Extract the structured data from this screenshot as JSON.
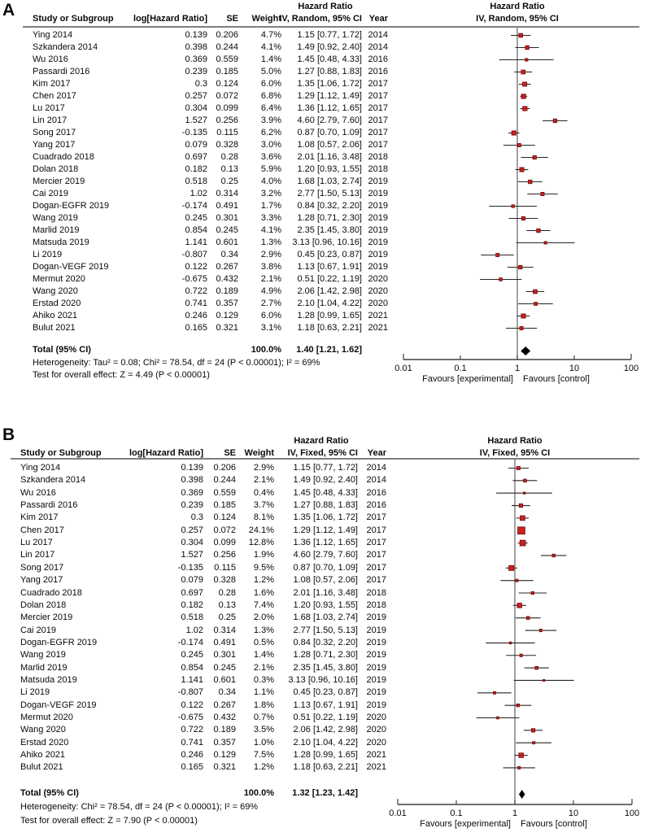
{
  "chart_data": [
    {
      "type": "forest",
      "panel_label": "A",
      "title": "Hazard Ratio",
      "model": "IV, Random, 95% CI",
      "columns": {
        "study": "Study or Subgroup",
        "loghr": "log[Hazard Ratio]",
        "se": "SE",
        "weight": "Weight",
        "year": "Year"
      },
      "x_scale": "log10",
      "x_ticks": [
        0.01,
        0.1,
        1,
        10,
        100
      ],
      "x_tick_labels": [
        "0.01",
        "0.1",
        "1",
        "10",
        "100"
      ],
      "favours_left": "Favours [experimental]",
      "favours_right": "Favours [control]",
      "studies": [
        {
          "name": "Ying 2014",
          "loghr": "0.139",
          "se": "0.206",
          "weight": "4.7%",
          "w": 4.7,
          "ci": "1.15 [0.77, 1.72]",
          "hr": 1.15,
          "lo": 0.77,
          "hi": 1.72,
          "year": "2014"
        },
        {
          "name": "Szkandera 2014",
          "loghr": "0.398",
          "se": "0.244",
          "weight": "4.1%",
          "w": 4.1,
          "ci": "1.49 [0.92, 2.40]",
          "hr": 1.49,
          "lo": 0.92,
          "hi": 2.4,
          "year": "2014"
        },
        {
          "name": "Wu 2016",
          "loghr": "0.369",
          "se": "0.559",
          "weight": "1.4%",
          "w": 1.4,
          "ci": "1.45 [0.48, 4.33]",
          "hr": 1.45,
          "lo": 0.48,
          "hi": 4.33,
          "year": "2016"
        },
        {
          "name": "Passardi 2016",
          "loghr": "0.239",
          "se": "0.185",
          "weight": "5.0%",
          "w": 5.0,
          "ci": "1.27 [0.88, 1.83]",
          "hr": 1.27,
          "lo": 0.88,
          "hi": 1.83,
          "year": "2016"
        },
        {
          "name": "Kim 2017",
          "loghr": "0.3",
          "se": "0.124",
          "weight": "6.0%",
          "w": 6.0,
          "ci": "1.35 [1.06, 1.72]",
          "hr": 1.35,
          "lo": 1.06,
          "hi": 1.72,
          "year": "2017"
        },
        {
          "name": "Chen 2017",
          "loghr": "0.257",
          "se": "0.072",
          "weight": "6.8%",
          "w": 6.8,
          "ci": "1.29 [1.12, 1.49]",
          "hr": 1.29,
          "lo": 1.12,
          "hi": 1.49,
          "year": "2017"
        },
        {
          "name": "Lu 2017",
          "loghr": "0.304",
          "se": "0.099",
          "weight": "6.4%",
          "w": 6.4,
          "ci": "1.36 [1.12, 1.65]",
          "hr": 1.36,
          "lo": 1.12,
          "hi": 1.65,
          "year": "2017"
        },
        {
          "name": "Lin 2017",
          "loghr": "1.527",
          "se": "0.256",
          "weight": "3.9%",
          "w": 3.9,
          "ci": "4.60 [2.79, 7.60]",
          "hr": 4.6,
          "lo": 2.79,
          "hi": 7.6,
          "year": "2017"
        },
        {
          "name": "Song 2017",
          "loghr": "-0.135",
          "se": "0.115",
          "weight": "6.2%",
          "w": 6.2,
          "ci": "0.87 [0.70, 1.09]",
          "hr": 0.87,
          "lo": 0.7,
          "hi": 1.09,
          "year": "2017"
        },
        {
          "name": "Yang 2017",
          "loghr": "0.079",
          "se": "0.328",
          "weight": "3.0%",
          "w": 3.0,
          "ci": "1.08 [0.57, 2.06]",
          "hr": 1.08,
          "lo": 0.57,
          "hi": 2.06,
          "year": "2017"
        },
        {
          "name": "Cuadrado 2018",
          "loghr": "0.697",
          "se": "0.28",
          "weight": "3.6%",
          "w": 3.6,
          "ci": "2.01 [1.16, 3.48]",
          "hr": 2.01,
          "lo": 1.16,
          "hi": 3.48,
          "year": "2018"
        },
        {
          "name": "Dolan 2018",
          "loghr": "0.182",
          "se": "0.13",
          "weight": "5.9%",
          "w": 5.9,
          "ci": "1.20 [0.93, 1.55]",
          "hr": 1.2,
          "lo": 0.93,
          "hi": 1.55,
          "year": "2018"
        },
        {
          "name": "Mercier 2019",
          "loghr": "0.518",
          "se": "0.25",
          "weight": "4.0%",
          "w": 4.0,
          "ci": "1.68 [1.03, 2.74]",
          "hr": 1.68,
          "lo": 1.03,
          "hi": 2.74,
          "year": "2019"
        },
        {
          "name": "Cai 2019",
          "loghr": "1.02",
          "se": "0.314",
          "weight": "3.2%",
          "w": 3.2,
          "ci": "2.77 [1.50, 5.13]",
          "hr": 2.77,
          "lo": 1.5,
          "hi": 5.13,
          "year": "2019"
        },
        {
          "name": "Dogan-EGFR 2019",
          "loghr": "-0.174",
          "se": "0.491",
          "weight": "1.7%",
          "w": 1.7,
          "ci": "0.84 [0.32, 2.20]",
          "hr": 0.84,
          "lo": 0.32,
          "hi": 2.2,
          "year": "2019"
        },
        {
          "name": "Wang 2019",
          "loghr": "0.245",
          "se": "0.301",
          "weight": "3.3%",
          "w": 3.3,
          "ci": "1.28 [0.71, 2.30]",
          "hr": 1.28,
          "lo": 0.71,
          "hi": 2.3,
          "year": "2019"
        },
        {
          "name": "Marlid 2019",
          "loghr": "0.854",
          "se": "0.245",
          "weight": "4.1%",
          "w": 4.1,
          "ci": "2.35 [1.45, 3.80]",
          "hr": 2.35,
          "lo": 1.45,
          "hi": 3.8,
          "year": "2019"
        },
        {
          "name": "Matsuda 2019",
          "loghr": "1.141",
          "se": "0.601",
          "weight": "1.3%",
          "w": 1.3,
          "ci": "3.13 [0.96, 10.16]",
          "hr": 3.13,
          "lo": 0.96,
          "hi": 10.16,
          "year": "2019"
        },
        {
          "name": "Li 2019",
          "loghr": "-0.807",
          "se": "0.34",
          "weight": "2.9%",
          "w": 2.9,
          "ci": "0.45 [0.23, 0.87]",
          "hr": 0.45,
          "lo": 0.23,
          "hi": 0.87,
          "year": "2019"
        },
        {
          "name": "Dogan-VEGF 2019",
          "loghr": "0.122",
          "se": "0.267",
          "weight": "3.8%",
          "w": 3.8,
          "ci": "1.13 [0.67, 1.91]",
          "hr": 1.13,
          "lo": 0.67,
          "hi": 1.91,
          "year": "2019"
        },
        {
          "name": "Mermut 2020",
          "loghr": "-0.675",
          "se": "0.432",
          "weight": "2.1%",
          "w": 2.1,
          "ci": "0.51 [0.22, 1.19]",
          "hr": 0.51,
          "lo": 0.22,
          "hi": 1.19,
          "year": "2020"
        },
        {
          "name": "Wang 2020",
          "loghr": "0.722",
          "se": "0.189",
          "weight": "4.9%",
          "w": 4.9,
          "ci": "2.06 [1.42, 2.98]",
          "hr": 2.06,
          "lo": 1.42,
          "hi": 2.98,
          "year": "2020"
        },
        {
          "name": "Erstad 2020",
          "loghr": "0.741",
          "se": "0.357",
          "weight": "2.7%",
          "w": 2.7,
          "ci": "2.10 [1.04, 4.22]",
          "hr": 2.1,
          "lo": 1.04,
          "hi": 4.22,
          "year": "2020"
        },
        {
          "name": "Ahiko 2021",
          "loghr": "0.246",
          "se": "0.129",
          "weight": "6.0%",
          "w": 6.0,
          "ci": "1.28 [0.99, 1.65]",
          "hr": 1.28,
          "lo": 0.99,
          "hi": 1.65,
          "year": "2021"
        },
        {
          "name": "Bulut 2021",
          "loghr": "0.165",
          "se": "0.321",
          "weight": "3.1%",
          "w": 3.1,
          "ci": "1.18 [0.63, 2.21]",
          "hr": 1.18,
          "lo": 0.63,
          "hi": 2.21,
          "year": "2021"
        }
      ],
      "total": {
        "label": "Total (95% CI)",
        "weight": "100.0%",
        "ci": "1.40 [1.21, 1.62]",
        "hr": 1.4,
        "lo": 1.21,
        "hi": 1.62
      },
      "heterogeneity": "Heterogeneity: Tau² = 0.08; Chi² = 78.54, df = 24 (P < 0.00001); I² = 69%",
      "overall_test": "Test for overall effect: Z = 4.49 (P < 0.00001)"
    },
    {
      "type": "forest",
      "panel_label": "B",
      "title": "Hazard Ratio",
      "model": "IV, Fixed, 95% CI",
      "columns": {
        "study": "Study or Subgroup",
        "loghr": "log[Hazard Ratio]",
        "se": "SE",
        "weight": "Weight",
        "year": "Year"
      },
      "x_scale": "log10",
      "x_ticks": [
        0.01,
        0.1,
        1,
        10,
        100
      ],
      "x_tick_labels": [
        "0.01",
        "0.1",
        "1",
        "10",
        "100"
      ],
      "favours_left": "Favours [experimental]",
      "favours_right": "Favours [control]",
      "studies": [
        {
          "name": "Ying 2014",
          "loghr": "0.139",
          "se": "0.206",
          "weight": "2.9%",
          "w": 2.9,
          "ci": "1.15 [0.77, 1.72]",
          "hr": 1.15,
          "lo": 0.77,
          "hi": 1.72,
          "year": "2014"
        },
        {
          "name": "Szkandera 2014",
          "loghr": "0.398",
          "se": "0.244",
          "weight": "2.1%",
          "w": 2.1,
          "ci": "1.49 [0.92, 2.40]",
          "hr": 1.49,
          "lo": 0.92,
          "hi": 2.4,
          "year": "2014"
        },
        {
          "name": "Wu 2016",
          "loghr": "0.369",
          "se": "0.559",
          "weight": "0.4%",
          "w": 0.4,
          "ci": "1.45 [0.48, 4.33]",
          "hr": 1.45,
          "lo": 0.48,
          "hi": 4.33,
          "year": "2016"
        },
        {
          "name": "Passardi 2016",
          "loghr": "0.239",
          "se": "0.185",
          "weight": "3.7%",
          "w": 3.7,
          "ci": "1.27 [0.88, 1.83]",
          "hr": 1.27,
          "lo": 0.88,
          "hi": 1.83,
          "year": "2016"
        },
        {
          "name": "Kim 2017",
          "loghr": "0.3",
          "se": "0.124",
          "weight": "8.1%",
          "w": 8.1,
          "ci": "1.35 [1.06, 1.72]",
          "hr": 1.35,
          "lo": 1.06,
          "hi": 1.72,
          "year": "2017"
        },
        {
          "name": "Chen 2017",
          "loghr": "0.257",
          "se": "0.072",
          "weight": "24.1%",
          "w": 24.1,
          "ci": "1.29 [1.12, 1.49]",
          "hr": 1.29,
          "lo": 1.12,
          "hi": 1.49,
          "year": "2017"
        },
        {
          "name": "Lu 2017",
          "loghr": "0.304",
          "se": "0.099",
          "weight": "12.8%",
          "w": 12.8,
          "ci": "1.36 [1.12, 1.65]",
          "hr": 1.36,
          "lo": 1.12,
          "hi": 1.65,
          "year": "2017"
        },
        {
          "name": "Lin 2017",
          "loghr": "1.527",
          "se": "0.256",
          "weight": "1.9%",
          "w": 1.9,
          "ci": "4.60 [2.79, 7.60]",
          "hr": 4.6,
          "lo": 2.79,
          "hi": 7.6,
          "year": "2017"
        },
        {
          "name": "Song 2017",
          "loghr": "-0.135",
          "se": "0.115",
          "weight": "9.5%",
          "w": 9.5,
          "ci": "0.87 [0.70, 1.09]",
          "hr": 0.87,
          "lo": 0.7,
          "hi": 1.09,
          "year": "2017"
        },
        {
          "name": "Yang 2017",
          "loghr": "0.079",
          "se": "0.328",
          "weight": "1.2%",
          "w": 1.2,
          "ci": "1.08 [0.57, 2.06]",
          "hr": 1.08,
          "lo": 0.57,
          "hi": 2.06,
          "year": "2017"
        },
        {
          "name": "Cuadrado 2018",
          "loghr": "0.697",
          "se": "0.28",
          "weight": "1.6%",
          "w": 1.6,
          "ci": "2.01 [1.16, 3.48]",
          "hr": 2.01,
          "lo": 1.16,
          "hi": 3.48,
          "year": "2018"
        },
        {
          "name": "Dolan 2018",
          "loghr": "0.182",
          "se": "0.13",
          "weight": "7.4%",
          "w": 7.4,
          "ci": "1.20 [0.93, 1.55]",
          "hr": 1.2,
          "lo": 0.93,
          "hi": 1.55,
          "year": "2018"
        },
        {
          "name": "Mercier 2019",
          "loghr": "0.518",
          "se": "0.25",
          "weight": "2.0%",
          "w": 2.0,
          "ci": "1.68 [1.03, 2.74]",
          "hr": 1.68,
          "lo": 1.03,
          "hi": 2.74,
          "year": "2019"
        },
        {
          "name": "Cai 2019",
          "loghr": "1.02",
          "se": "0.314",
          "weight": "1.3%",
          "w": 1.3,
          "ci": "2.77 [1.50, 5.13]",
          "hr": 2.77,
          "lo": 1.5,
          "hi": 5.13,
          "year": "2019"
        },
        {
          "name": "Dogan-EGFR 2019",
          "loghr": "-0.174",
          "se": "0.491",
          "weight": "0.5%",
          "w": 0.5,
          "ci": "0.84 [0.32, 2.20]",
          "hr": 0.84,
          "lo": 0.32,
          "hi": 2.2,
          "year": "2019"
        },
        {
          "name": "Wang 2019",
          "loghr": "0.245",
          "se": "0.301",
          "weight": "1.4%",
          "w": 1.4,
          "ci": "1.28 [0.71, 2.30]",
          "hr": 1.28,
          "lo": 0.71,
          "hi": 2.3,
          "year": "2019"
        },
        {
          "name": "Marlid 2019",
          "loghr": "0.854",
          "se": "0.245",
          "weight": "2.1%",
          "w": 2.1,
          "ci": "2.35 [1.45, 3.80]",
          "hr": 2.35,
          "lo": 1.45,
          "hi": 3.8,
          "year": "2019"
        },
        {
          "name": "Matsuda 2019",
          "loghr": "1.141",
          "se": "0.601",
          "weight": "0.3%",
          "w": 0.3,
          "ci": "3.13 [0.96, 10.16]",
          "hr": 3.13,
          "lo": 0.96,
          "hi": 10.16,
          "year": "2019"
        },
        {
          "name": "Li 2019",
          "loghr": "-0.807",
          "se": "0.34",
          "weight": "1.1%",
          "w": 1.1,
          "ci": "0.45 [0.23, 0.87]",
          "hr": 0.45,
          "lo": 0.23,
          "hi": 0.87,
          "year": "2019"
        },
        {
          "name": "Dogan-VEGF 2019",
          "loghr": "0.122",
          "se": "0.267",
          "weight": "1.8%",
          "w": 1.8,
          "ci": "1.13 [0.67, 1.91]",
          "hr": 1.13,
          "lo": 0.67,
          "hi": 1.91,
          "year": "2019"
        },
        {
          "name": "Mermut 2020",
          "loghr": "-0.675",
          "se": "0.432",
          "weight": "0.7%",
          "w": 0.7,
          "ci": "0.51 [0.22, 1.19]",
          "hr": 0.51,
          "lo": 0.22,
          "hi": 1.19,
          "year": "2020"
        },
        {
          "name": "Wang 2020",
          "loghr": "0.722",
          "se": "0.189",
          "weight": "3.5%",
          "w": 3.5,
          "ci": "2.06 [1.42, 2.98]",
          "hr": 2.06,
          "lo": 1.42,
          "hi": 2.98,
          "year": "2020"
        },
        {
          "name": "Erstad 2020",
          "loghr": "0.741",
          "se": "0.357",
          "weight": "1.0%",
          "w": 1.0,
          "ci": "2.10 [1.04, 4.22]",
          "hr": 2.1,
          "lo": 1.04,
          "hi": 4.22,
          "year": "2020"
        },
        {
          "name": "Ahiko 2021",
          "loghr": "0.246",
          "se": "0.129",
          "weight": "7.5%",
          "w": 7.5,
          "ci": "1.28 [0.99, 1.65]",
          "hr": 1.28,
          "lo": 0.99,
          "hi": 1.65,
          "year": "2021"
        },
        {
          "name": "Bulut 2021",
          "loghr": "0.165",
          "se": "0.321",
          "weight": "1.2%",
          "w": 1.2,
          "ci": "1.18 [0.63, 2.21]",
          "hr": 1.18,
          "lo": 0.63,
          "hi": 2.21,
          "year": "2021"
        }
      ],
      "total": {
        "label": "Total (95% CI)",
        "weight": "100.0%",
        "ci": "1.32 [1.23, 1.42]",
        "hr": 1.32,
        "lo": 1.23,
        "hi": 1.42
      },
      "heterogeneity": "Heterogeneity: Chi² = 78.54, df = 24 (P < 0.00001); I² = 69%",
      "overall_test": "Test for overall effect: Z = 7.90 (P < 0.00001)"
    }
  ],
  "colors": {
    "marker_fill": "#cc2020",
    "marker_stroke": "#6d0b0b",
    "diamond": "#000000",
    "ci_line": "#262626",
    "axis_line": "#404040",
    "null_line": "#6e6e6e",
    "header_rule": "#7f7f7f"
  }
}
